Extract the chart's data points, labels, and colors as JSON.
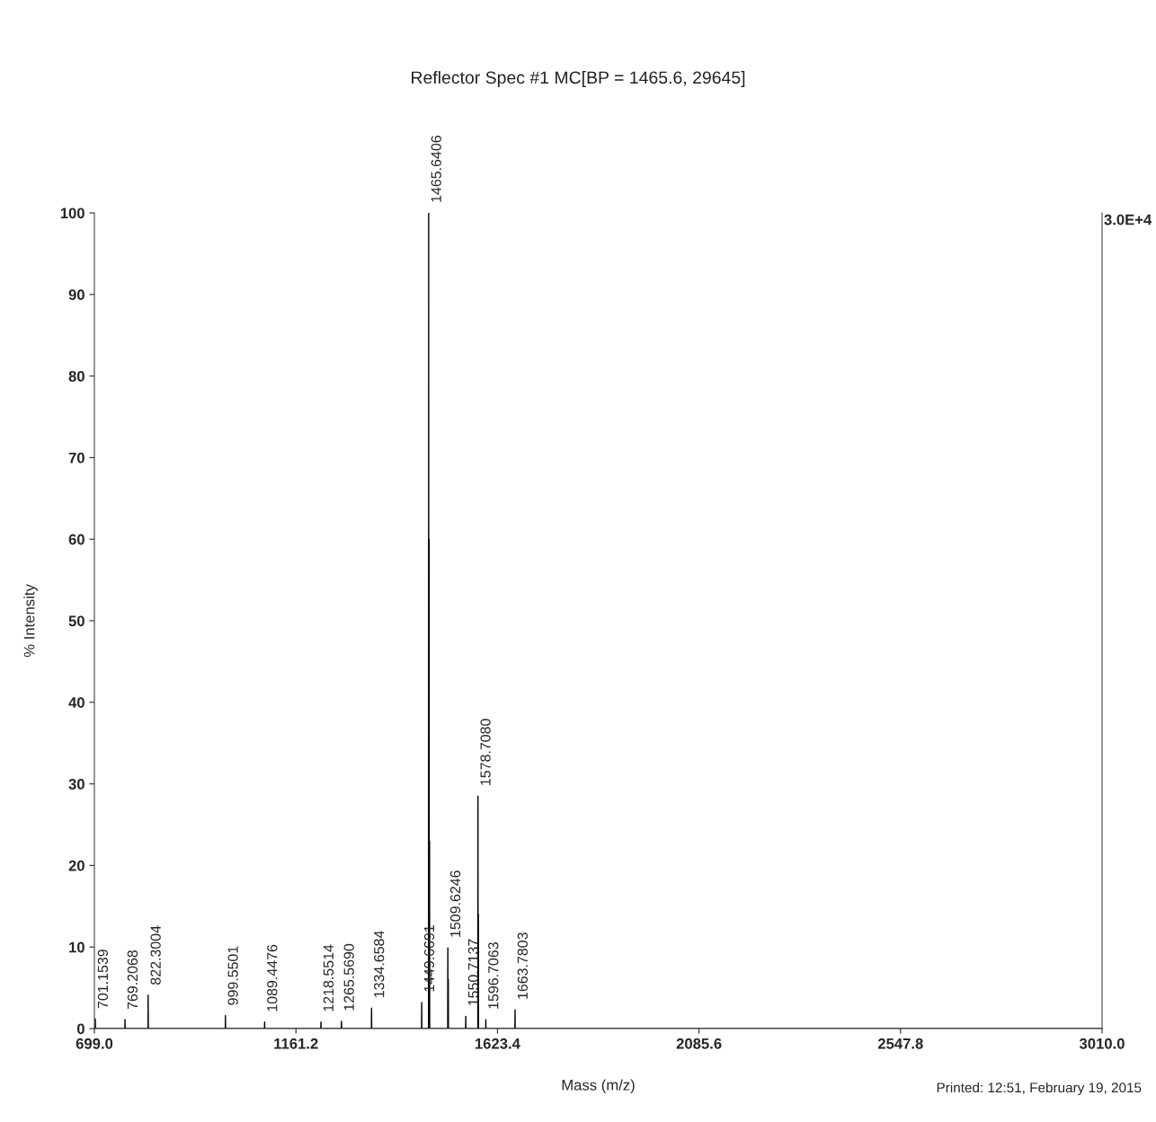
{
  "chart_data": {
    "type": "line",
    "title": "Reflector Spec #1 MC[BP = 1465.6, 29645]",
    "xlabel": "Mass (m/z)",
    "ylabel": "% Intensity",
    "series": [
      {
        "color": "#000000",
        "x": [
          699.0,
          700.85,
          701.15,
          701.45,
          768.91,
          769.21,
          769.51,
          822.0,
          822.3,
          822.6,
          999.25,
          999.55,
          999.85,
          1089.15,
          1089.45,
          1089.75,
          1218.25,
          1218.55,
          1218.85,
          1265.27,
          1265.57,
          1265.87,
          1334.36,
          1334.66,
          1334.96,
          1449.37,
          1449.67,
          1449.97,
          1465.34,
          1465.64,
          1465.94,
          1466.34,
          1466.64,
          1466.94,
          1467.34,
          1467.64,
          1467.94,
          1509.32,
          1509.62,
          1509.92,
          1510.32,
          1510.62,
          1510.92,
          1550.41,
          1550.71,
          1551.01,
          1578.41,
          1578.71,
          1579.01,
          1579.41,
          1579.71,
          1580.01,
          1596.41,
          1596.71,
          1597.01,
          1663.48,
          1663.78,
          1664.08,
          3010.0
        ],
        "values": [
          0,
          0,
          1.2,
          0,
          0,
          1.1,
          0,
          0,
          4.1,
          0,
          0,
          1.6,
          0,
          0,
          0.8,
          0,
          0,
          0.8,
          0,
          0,
          0.9,
          0,
          0,
          2.5,
          0,
          0,
          3.2,
          0,
          0,
          100,
          0,
          0,
          60,
          0,
          0,
          23,
          0,
          0,
          9.9,
          0,
          0,
          6,
          0,
          0,
          1.5,
          0,
          0,
          28.5,
          0,
          0,
          14,
          0,
          0,
          1.1,
          0,
          0,
          2.3,
          0,
          0
        ]
      }
    ],
    "xlim": [
      699.0,
      3010.0
    ],
    "xticks": [
      {
        "value": 699.0,
        "label": "699.0"
      },
      {
        "value": 1161.2,
        "label": "1161.2"
      },
      {
        "value": 1623.4,
        "label": "1623.4"
      },
      {
        "value": 2085.6,
        "label": "2085.6"
      },
      {
        "value": 2547.8,
        "label": "2547.8"
      },
      {
        "value": 3010.0,
        "label": "3010.0"
      }
    ],
    "ylim": [
      0,
      100
    ],
    "yticks": [
      0,
      10,
      20,
      30,
      40,
      50,
      60,
      70,
      80,
      90,
      100
    ],
    "grid": false,
    "legend": false,
    "marker": "none",
    "line_style": "solid",
    "annotations": [
      "3.0E+4",
      "Printed: 12:51, February 19, 2015",
      {
        "text": "701.1539",
        "x": 701.1539,
        "y": 1.2
      },
      {
        "text": "769.2068",
        "x": 769.2068,
        "y": 1.1
      },
      {
        "text": "822.3004",
        "x": 822.3004,
        "y": 4.1
      },
      {
        "text": "999.5501",
        "x": 999.5501,
        "y": 1.6
      },
      {
        "text": "1089.4476",
        "x": 1089.4476,
        "y": 0.8
      },
      {
        "text": "1218.5514",
        "x": 1218.5514,
        "y": 0.8
      },
      {
        "text": "1265.5690",
        "x": 1265.569,
        "y": 0.9
      },
      {
        "text": "1334.6584",
        "x": 1334.6584,
        "y": 2.5
      },
      {
        "text": "1449.6691",
        "x": 1449.6691,
        "y": 3.2
      },
      {
        "text": "1465.6406",
        "x": 1465.6406,
        "y": 100
      },
      {
        "text": "1509.6246",
        "x": 1509.6246,
        "y": 9.9
      },
      {
        "text": "1550.7137",
        "x": 1550.7137,
        "y": 1.5
      },
      {
        "text": "1578.7080",
        "x": 1578.708,
        "y": 28.5
      },
      {
        "text": "1596.7063",
        "x": 1596.7063,
        "y": 1.1
      },
      {
        "text": "1663.7803",
        "x": 1663.7803,
        "y": 2.3
      }
    ]
  }
}
